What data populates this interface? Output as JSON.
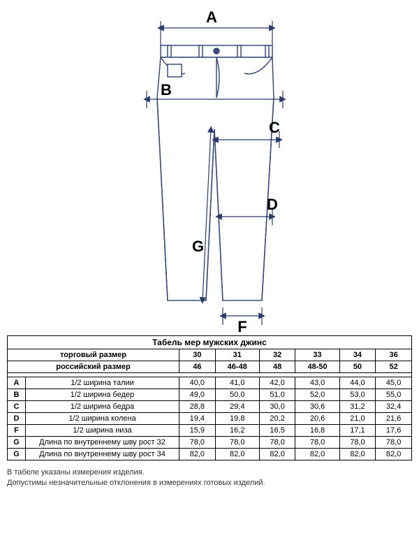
{
  "diagram": {
    "labels": {
      "A": "A",
      "B": "B",
      "C": "C",
      "D": "D",
      "F": "F",
      "G": "G"
    },
    "colors": {
      "outline": "#3a4a7a",
      "dimension": "#2a3a6a",
      "fill": "#ffffff",
      "text": "#000000"
    },
    "stroke_width": 1.5,
    "dim_stroke_width": 1.2
  },
  "table": {
    "title": "Табель мер мужских джинс",
    "header_rows": [
      {
        "label": "торговый размер",
        "values": [
          "30",
          "31",
          "32",
          "33",
          "34",
          "36"
        ]
      },
      {
        "label": "российский размер",
        "values": [
          "46",
          "46-48",
          "48",
          "48-50",
          "50",
          "52"
        ]
      }
    ],
    "measure_rows": [
      {
        "letter": "A",
        "desc": "1/2 ширина талии",
        "values": [
          "40,0",
          "41,0",
          "42,0",
          "43,0",
          "44,0",
          "45,0"
        ]
      },
      {
        "letter": "B",
        "desc": "1/2 ширина бедер",
        "values": [
          "49,0",
          "50,0",
          "51,0",
          "52,0",
          "53,0",
          "55,0"
        ]
      },
      {
        "letter": "C",
        "desc": "1/2 ширина бедра",
        "values": [
          "28,8",
          "29,4",
          "30,0",
          "30,6",
          "31,2",
          "32,4"
        ]
      },
      {
        "letter": "D",
        "desc": "1/2 ширина колена",
        "values": [
          "19,4",
          "19,8",
          "20,2",
          "20,6",
          "21,0",
          "21,6"
        ]
      },
      {
        "letter": "F",
        "desc": "1/2 ширина низа",
        "values": [
          "15,9",
          "16,2",
          "16,5",
          "16,8",
          "17,1",
          "17,6"
        ]
      },
      {
        "letter": "G",
        "desc": "Длина по внутреннему шву рост 32",
        "values": [
          "78,0",
          "78,0",
          "78,0",
          "78,0",
          "78,0",
          "78,0"
        ]
      },
      {
        "letter": "G",
        "desc": "Длина по внутреннему шву рост 34",
        "values": [
          "82,0",
          "82,0",
          "82,0",
          "82,0",
          "82,0",
          "82,0"
        ]
      }
    ]
  },
  "footnote": {
    "line1": "В табеле указаны измерения изделия.",
    "line2": "Допустимы незначительные отклонения в измерениях готовых изделий."
  }
}
